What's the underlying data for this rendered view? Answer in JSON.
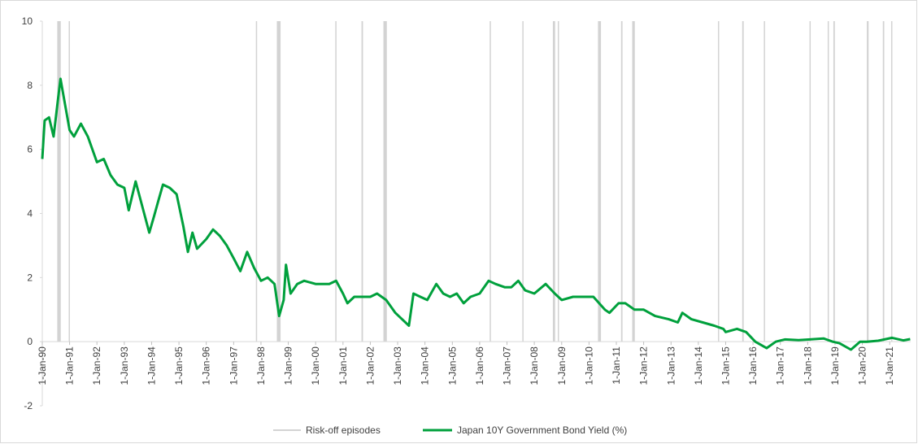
{
  "chart_data": {
    "type": "line",
    "x": [
      "1990-01-01",
      "1990-02-01",
      "1990-04-01",
      "1990-06-01",
      "1990-08-01",
      "1990-09-01",
      "1990-11-01",
      "1991-01-01",
      "1991-03-01",
      "1991-06-01",
      "1991-09-01",
      "1992-01-01",
      "1992-04-01",
      "1992-07-01",
      "1992-10-01",
      "1993-01-01",
      "1993-03-01",
      "1993-06-01",
      "1993-09-01",
      "1993-12-01",
      "1994-02-01",
      "1994-04-01",
      "1994-06-01",
      "1994-09-01",
      "1994-12-01",
      "1995-03-01",
      "1995-05-01",
      "1995-07-01",
      "1995-09-01",
      "1996-01-01",
      "1996-04-01",
      "1996-07-01",
      "1996-10-01",
      "1997-01-01",
      "1997-04-01",
      "1997-07-01",
      "1997-10-01",
      "1998-01-01",
      "1998-04-01",
      "1998-07-01",
      "1998-09-01",
      "1998-11-01",
      "1998-12-01",
      "1999-02-01",
      "1999-05-01",
      "1999-08-01",
      "2000-01-01",
      "2000-04-01",
      "2000-07-01",
      "2000-10-01",
      "2001-01-01",
      "2001-03-01",
      "2001-06-01",
      "2001-09-01",
      "2002-01-01",
      "2002-04-01",
      "2002-08-01",
      "2002-12-01",
      "2003-03-01",
      "2003-06-01",
      "2003-08-01",
      "2003-11-01",
      "2004-02-01",
      "2004-06-01",
      "2004-09-01",
      "2004-12-01",
      "2005-03-01",
      "2005-06-01",
      "2005-09-01",
      "2006-01-01",
      "2006-05-01",
      "2006-08-01",
      "2006-12-01",
      "2007-03-01",
      "2007-06-01",
      "2007-09-01",
      "2008-01-01",
      "2008-06-01",
      "2008-10-01",
      "2009-01-01",
      "2009-06-01",
      "2009-10-01",
      "2010-03-01",
      "2010-08-01",
      "2010-10-01",
      "2011-02-01",
      "2011-05-01",
      "2011-09-01",
      "2012-01-01",
      "2012-06-01",
      "2012-12-01",
      "2013-04-01",
      "2013-06-01",
      "2013-10-01",
      "2014-03-01",
      "2014-08-01",
      "2014-12-01",
      "2015-01-01",
      "2015-06-01",
      "2015-10-01",
      "2016-02-01",
      "2016-07-01",
      "2016-11-01",
      "2017-03-01",
      "2017-09-01",
      "2018-02-01",
      "2018-08-01",
      "2018-12-01",
      "2019-03-01",
      "2019-08-01",
      "2019-12-01",
      "2020-03-01",
      "2020-08-01",
      "2021-02-01",
      "2021-07-01",
      "2021-10-01"
    ],
    "series": [
      {
        "name": "Japan 10Y Government Bond Yield (%)",
        "color": "#00a03c",
        "values": [
          5.7,
          6.9,
          7.0,
          6.4,
          7.6,
          8.2,
          7.4,
          6.6,
          6.4,
          6.8,
          6.4,
          5.6,
          5.7,
          5.2,
          4.9,
          4.8,
          4.1,
          5.0,
          4.2,
          3.4,
          3.9,
          4.4,
          4.9,
          4.8,
          4.6,
          3.6,
          2.8,
          3.4,
          2.9,
          3.2,
          3.5,
          3.3,
          3.0,
          2.6,
          2.2,
          2.8,
          2.3,
          1.9,
          2.0,
          1.8,
          0.8,
          1.3,
          2.4,
          1.5,
          1.8,
          1.9,
          1.8,
          1.8,
          1.8,
          1.9,
          1.5,
          1.2,
          1.4,
          1.4,
          1.4,
          1.5,
          1.3,
          0.9,
          0.7,
          0.5,
          1.5,
          1.4,
          1.3,
          1.8,
          1.5,
          1.4,
          1.5,
          1.2,
          1.4,
          1.5,
          1.9,
          1.8,
          1.7,
          1.7,
          1.9,
          1.6,
          1.5,
          1.8,
          1.5,
          1.3,
          1.4,
          1.4,
          1.4,
          1.0,
          0.9,
          1.2,
          1.2,
          1.0,
          1.0,
          0.8,
          0.7,
          0.6,
          0.9,
          0.7,
          0.6,
          0.5,
          0.4,
          0.3,
          0.4,
          0.3,
          0.0,
          -0.2,
          0.0,
          0.07,
          0.05,
          0.07,
          0.1,
          0.0,
          -0.05,
          -0.25,
          0.0,
          0.0,
          0.03,
          0.12,
          0.04,
          0.08
        ]
      }
    ],
    "bands": {
      "name": "Risk-off episodes",
      "color": "#d3d3d3",
      "start": [
        "1990-07-20",
        "1990-12-20",
        "1997-10-25",
        "1998-08-01",
        "2000-09-20",
        "2001-09-05",
        "2002-06-25",
        "2006-05-15",
        "2007-07-25",
        "2008-09-05",
        "2008-11-10",
        "2010-05-01",
        "2011-03-05",
        "2011-08-01",
        "2014-09-20",
        "2015-08-10",
        "2016-05-25",
        "2018-01-25",
        "2018-09-25",
        "2018-12-10",
        "2020-03-01",
        "2020-10-01",
        "2021-01-20"
      ],
      "end": [
        "1990-09-05",
        "1991-01-05",
        "1997-11-10",
        "1998-09-20",
        "2000-10-05",
        "2001-09-25",
        "2002-08-10",
        "2006-05-30",
        "2007-08-10",
        "2008-10-05",
        "2008-11-25",
        "2010-06-10",
        "2011-03-25",
        "2011-09-05",
        "2014-10-05",
        "2015-08-30",
        "2016-06-10",
        "2018-02-10",
        "2018-10-10",
        "2018-12-30",
        "2020-03-25",
        "2020-10-20",
        "2021-02-05"
      ]
    },
    "xlim": [
      "1990-01-01",
      "2021-10-08"
    ],
    "xticks": [
      {
        "value": "1990-01-01",
        "label": "1-Jan-90"
      },
      {
        "value": "1991-01-01",
        "label": "1-Jan-91"
      },
      {
        "value": "1992-01-01",
        "label": "1-Jan-92"
      },
      {
        "value": "1993-01-01",
        "label": "1-Jan-93"
      },
      {
        "value": "1994-01-01",
        "label": "1-Jan-94"
      },
      {
        "value": "1995-01-01",
        "label": "1-Jan-95"
      },
      {
        "value": "1996-01-01",
        "label": "1-Jan-96"
      },
      {
        "value": "1997-01-01",
        "label": "1-Jan-97"
      },
      {
        "value": "1998-01-01",
        "label": "1-Jan-98"
      },
      {
        "value": "1999-01-01",
        "label": "1-Jan-99"
      },
      {
        "value": "2000-01-01",
        "label": "1-Jan-00"
      },
      {
        "value": "2001-01-01",
        "label": "1-Jan-01"
      },
      {
        "value": "2002-01-01",
        "label": "1-Jan-02"
      },
      {
        "value": "2003-01-01",
        "label": "1-Jan-03"
      },
      {
        "value": "2004-01-01",
        "label": "1-Jan-04"
      },
      {
        "value": "2005-01-01",
        "label": "1-Jan-05"
      },
      {
        "value": "2006-01-01",
        "label": "1-Jan-06"
      },
      {
        "value": "2007-01-01",
        "label": "1-Jan-07"
      },
      {
        "value": "2008-01-01",
        "label": "1-Jan-08"
      },
      {
        "value": "2009-01-01",
        "label": "1-Jan-09"
      },
      {
        "value": "2010-01-01",
        "label": "1-Jan-10"
      },
      {
        "value": "2011-01-01",
        "label": "1-Jan-11"
      },
      {
        "value": "2012-01-01",
        "label": "1-Jan-12"
      },
      {
        "value": "2013-01-01",
        "label": "1-Jan-13"
      },
      {
        "value": "2014-01-01",
        "label": "1-Jan-14"
      },
      {
        "value": "2015-01-01",
        "label": "1-Jan-15"
      },
      {
        "value": "2016-01-01",
        "label": "1-Jan-16"
      },
      {
        "value": "2017-01-01",
        "label": "1-Jan-17"
      },
      {
        "value": "2018-01-01",
        "label": "1-Jan-18"
      },
      {
        "value": "2019-01-01",
        "label": "1-Jan-19"
      },
      {
        "value": "2020-01-01",
        "label": "1-Jan-20"
      },
      {
        "value": "2021-01-01",
        "label": "1-Jan-21"
      }
    ],
    "ylim": [
      -2,
      10
    ],
    "yticks": [
      -2,
      0,
      2,
      4,
      6,
      8,
      10
    ],
    "legend": "bottom"
  }
}
